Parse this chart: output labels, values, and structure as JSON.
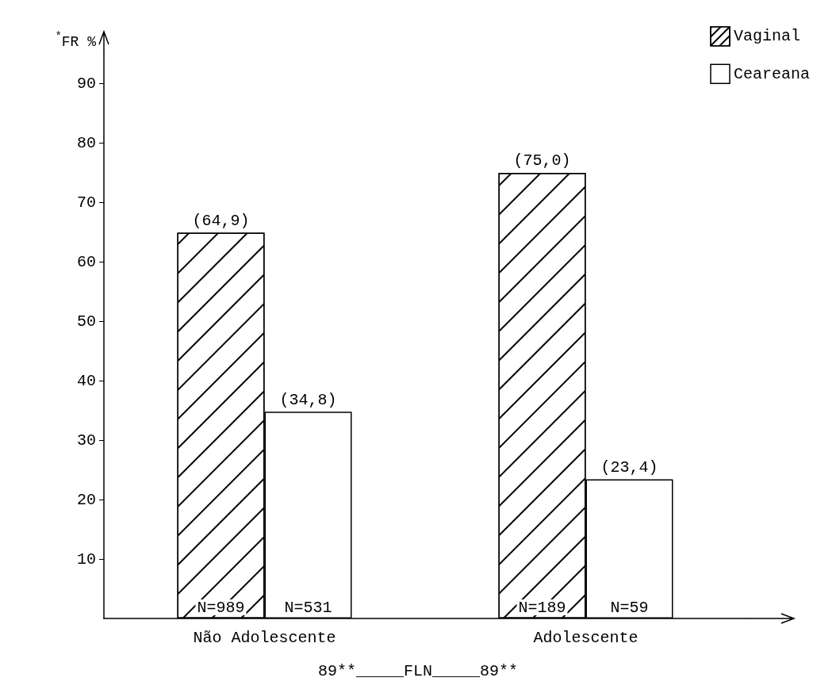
{
  "chart_data": {
    "type": "bar",
    "ylabel": "$^{*}$FR %",
    "categories": [
      "Não Adolescente",
      "Adolescente"
    ],
    "series": [
      {
        "name": "Vaginal",
        "color": "#000000",
        "values": [
          64.9,
          75.0
        ],
        "value_labels": [
          "(64,9)",
          "(75,0)"
        ]
      },
      {
        "name": "Ceareana",
        "color": "#ffffff",
        "values": [
          34.8,
          23.4
        ],
        "value_labels": [
          "(34,8)",
          "(23,4)"
        ]
      }
    ],
    "ylim": [
      0,
      95
    ],
    "yticks": [
      10,
      20,
      30,
      40,
      50,
      60,
      70,
      80,
      90
    ],
    "grid": false,
    "legend": "top right",
    "annotations": [
      {
        "text": "N=989",
        "x": "Não Adolescente",
        "y": 0
      },
      {
        "text": "N=531",
        "x": "Não Adolescente",
        "y": 0
      },
      {
        "text": "N=189",
        "x": "Adolescente",
        "y": 0
      },
      {
        "text": "N=59",
        "x": "Adolescente",
        "y": 0
      },
      "89**_____FLN_____89**"
    ]
  }
}
